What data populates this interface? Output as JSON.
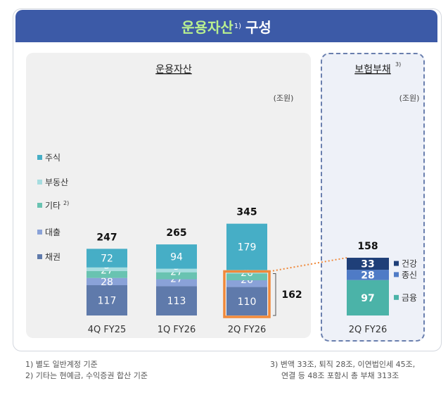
{
  "header": {
    "title_highlight": "운용자산",
    "title_sup": "1)",
    "title_rest": "구성"
  },
  "colors": {
    "banner": "#3c5aa7",
    "highlight_text": "#b9f08f",
    "stock": "#46aec6",
    "real_estate": "#a6dde0",
    "other": "#69c3b1",
    "loan": "#8aa2d8",
    "bond": "#5f7aab",
    "health": "#1f3f78",
    "life": "#4f7bc6",
    "annuity": "#4bb3a8",
    "focus_box": "#f0893a"
  },
  "chart_data": [
    {
      "type": "bar",
      "stacked": true,
      "title": "운용자산",
      "unit": "(조원)",
      "categories": [
        "4Q FY25",
        "1Q FY26",
        "2Q FY26"
      ],
      "totals": [
        "247",
        "265",
        "345"
      ],
      "series": [
        {
          "name": "채권",
          "key": "bond",
          "values": [
            117,
            113,
            110
          ]
        },
        {
          "name": "대출",
          "key": "loan",
          "values": [
            28,
            27,
            26
          ]
        },
        {
          "name": "기타",
          "sup": "2)",
          "key": "other",
          "values": [
            27,
            27,
            26
          ]
        },
        {
          "name": "부동산",
          "key": "real_estate",
          "values": [
            3,
            3,
            3
          ]
        },
        {
          "name": "주식",
          "key": "stock",
          "values": [
            72,
            94,
            179
          ]
        }
      ],
      "bracket_label": "162",
      "grid": false
    },
    {
      "type": "bar",
      "stacked": true,
      "title": "보험부채",
      "title_sup": "3)",
      "unit": "(조원)",
      "categories": [
        "2Q FY26"
      ],
      "totals": [
        "158"
      ],
      "series": [
        {
          "name": "금융",
          "key": "annuity",
          "values": [
            97
          ]
        },
        {
          "name": "종신",
          "key": "life",
          "values": [
            28
          ]
        },
        {
          "name": "건강",
          "key": "health",
          "values": [
            33
          ]
        }
      ]
    }
  ],
  "footnotes": {
    "left": [
      "1) 별도 일반계정 기준",
      "2) 기타는 현예금, 수익증권 합산 기준"
    ],
    "right": [
      "3) 변액 33조, 퇴직 28조, 이연법인세 45조,",
      "연결 등 48조 포함시 총 부채 313조"
    ]
  }
}
